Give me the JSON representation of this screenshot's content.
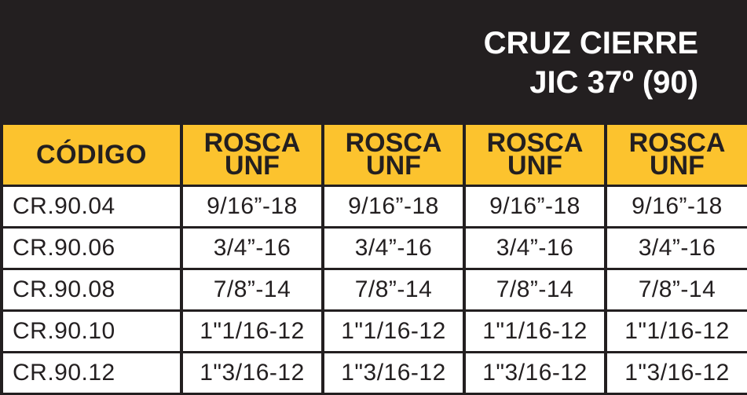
{
  "title": {
    "line1": "CRUZ CIERRE",
    "line2": "JIC 37º (90)"
  },
  "colors": {
    "header_background": "#231f20",
    "column_header_background": "#fcc32e",
    "text_dark": "#231f20",
    "text_light": "#ffffff"
  },
  "table": {
    "headers": [
      {
        "line1": "CÓDIGO",
        "line2": ""
      },
      {
        "line1": "ROSCA",
        "line2": "UNF"
      },
      {
        "line1": "ROSCA",
        "line2": "UNF"
      },
      {
        "line1": "ROSCA",
        "line2": "UNF"
      },
      {
        "line1": "ROSCA",
        "line2": "UNF"
      }
    ],
    "rows": [
      [
        "CR.90.04",
        "9/16”-18",
        "9/16”-18",
        "9/16”-18",
        "9/16”-18"
      ],
      [
        "CR.90.06",
        "3/4”-16",
        "3/4”-16",
        "3/4”-16",
        "3/4”-16"
      ],
      [
        "CR.90.08",
        "7/8”-14",
        "7/8”-14",
        "7/8”-14",
        "7/8”-14"
      ],
      [
        "CR.90.10",
        "1\"1/16-12",
        "1\"1/16-12",
        "1\"1/16-12",
        "1\"1/16-12"
      ],
      [
        "CR.90.12",
        "1\"3/16-12",
        "1\"3/16-12",
        "1\"3/16-12",
        "1\"3/16-12"
      ]
    ]
  }
}
